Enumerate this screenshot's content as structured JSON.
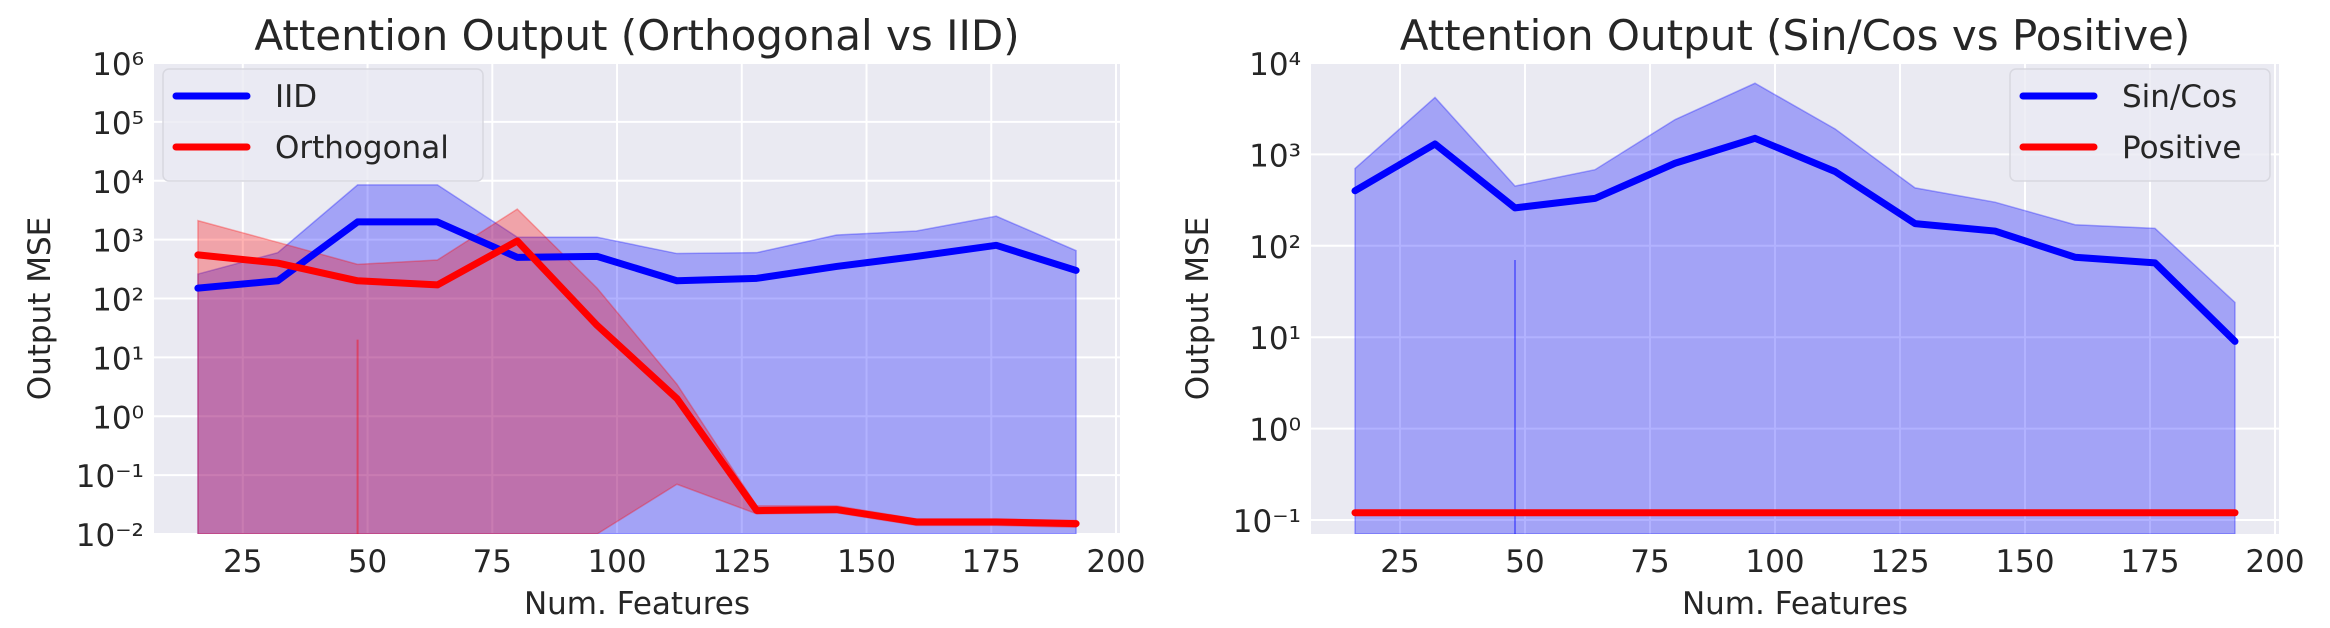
{
  "chart_data": [
    {
      "type": "line",
      "title": "Attention Output (Orthogonal vs IID)",
      "xlabel": "Num. Features",
      "ylabel": "Output MSE",
      "yscale": "log",
      "xlim": [
        7.2,
        200.8
      ],
      "ylim": [
        0.01,
        1000000
      ],
      "grid": true,
      "legend_position": "top-left",
      "xticks": [
        25,
        50,
        75,
        100,
        125,
        150,
        175,
        200
      ],
      "xtick_labels": [
        "25",
        "50",
        "75",
        "100",
        "125",
        "150",
        "175",
        "200"
      ],
      "yticks": [
        0.01,
        0.1,
        1,
        10,
        100,
        1000,
        10000,
        100000,
        1000000
      ],
      "ytick_labels": [
        "10⁻²",
        "10⁻¹",
        "10⁰",
        "10¹",
        "10²",
        "10³",
        "10⁴",
        "10⁵",
        "10⁶"
      ],
      "x": [
        16,
        32,
        48,
        64,
        80,
        96,
        112,
        128,
        144,
        160,
        176,
        192
      ],
      "series": [
        {
          "name": "IID",
          "color": "#0000ff",
          "values": [
            150,
            200,
            2000,
            2000,
            500,
            520,
            200,
            220,
            350,
            520,
            800,
            300
          ],
          "upper": [
            260,
            600,
            8500,
            8500,
            1100,
            1100,
            580,
            600,
            1200,
            1400,
            2500,
            650
          ],
          "lower": [
            0.0001,
            0.0001,
            0.0001,
            0.0001,
            0.0001,
            0.0001,
            0.0001,
            0.0001,
            0.0001,
            0.0001,
            0.0001,
            0.0001
          ],
          "spike": {
            "x": 48,
            "value": 0
          }
        },
        {
          "name": "Orthogonal",
          "color": "#ff0000",
          "values": [
            550,
            400,
            200,
            170,
            950,
            35,
            2,
            0.025,
            0.026,
            0.016,
            0.016,
            0.015
          ],
          "upper": [
            2100,
            900,
            380,
            450,
            3300,
            150,
            3.5,
            0.03,
            0.03,
            0.018,
            0.018,
            0.017
          ],
          "lower": [
            0.0001,
            0.0001,
            0.0001,
            0.0001,
            0.0001,
            0.0001,
            0.07,
            0.022,
            0.023,
            0.014,
            0.014,
            0.013
          ],
          "spike": {
            "x": 48,
            "value": 20
          }
        }
      ]
    },
    {
      "type": "line",
      "title": "Attention Output (Sin/Cos vs Positive)",
      "xlabel": "Num. Features",
      "ylabel": "Output MSE",
      "yscale": "log",
      "xlim": [
        7.2,
        200.8
      ],
      "ylim": [
        0.0703,
        10000
      ],
      "grid": true,
      "legend_position": "top-right",
      "xticks": [
        25,
        50,
        75,
        100,
        125,
        150,
        175,
        200
      ],
      "xtick_labels": [
        "25",
        "50",
        "75",
        "100",
        "125",
        "150",
        "175",
        "200"
      ],
      "yticks": [
        0.1,
        1,
        10,
        100,
        1000,
        10000
      ],
      "ytick_labels": [
        "10⁻¹",
        "10⁰",
        "10¹",
        "10²",
        "10³",
        "10⁴"
      ],
      "x": [
        16,
        32,
        48,
        64,
        80,
        96,
        112,
        128,
        144,
        160,
        176,
        192
      ],
      "series": [
        {
          "name": "Sin/Cos",
          "color": "#0000ff",
          "values": [
            400,
            1300,
            260,
            330,
            800,
            1500,
            650,
            175,
            145,
            75,
            65,
            9
          ],
          "upper": [
            700,
            4200,
            450,
            680,
            2400,
            6000,
            1900,
            430,
            300,
            170,
            155,
            24
          ],
          "lower": [
            0.0001,
            0.0001,
            0.0001,
            0.0001,
            0.0001,
            0.0001,
            0.0001,
            0.0001,
            0.0001,
            0.0001,
            0.0001,
            0.0001
          ],
          "spike": {
            "x": 48,
            "value": 70
          }
        },
        {
          "name": "Positive",
          "color": "#ff0000",
          "values": [
            0.12,
            0.12,
            0.12,
            0.12,
            0.12,
            0.12,
            0.12,
            0.12,
            0.12,
            0.12,
            0.12,
            0.12
          ],
          "upper": [
            0.125,
            0.125,
            0.125,
            0.125,
            0.125,
            0.125,
            0.125,
            0.125,
            0.125,
            0.125,
            0.125,
            0.125
          ],
          "lower": [
            0.115,
            0.115,
            0.115,
            0.115,
            0.115,
            0.115,
            0.115,
            0.115,
            0.115,
            0.115,
            0.115,
            0.115
          ],
          "spike": {
            "x": 48,
            "value": 0
          }
        }
      ]
    }
  ]
}
